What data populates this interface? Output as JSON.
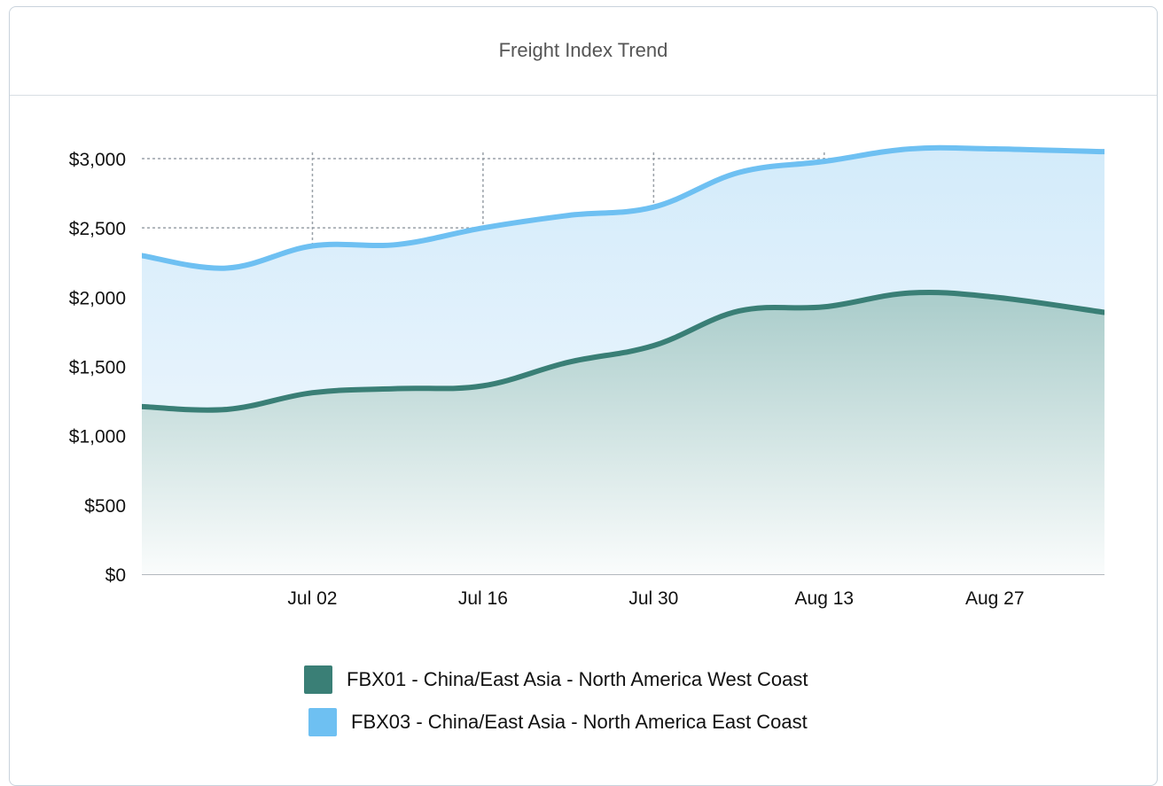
{
  "card": {
    "title": "Freight Index Trend"
  },
  "chart_data": {
    "type": "area",
    "title": "Freight Index Trend",
    "xlabel": "",
    "ylabel": "",
    "x_start": "2025-06-18",
    "x_end": "2025-09-05",
    "x_ticks": [
      "Jul 02",
      "Jul 16",
      "Jul 30",
      "Aug 13",
      "Aug 27"
    ],
    "x_tick_dates": [
      "2025-07-02",
      "2025-07-16",
      "2025-07-30",
      "2025-08-13",
      "2025-08-27"
    ],
    "y_ticks": [
      "$0",
      "$500",
      "$1,000",
      "$1,500",
      "$2,000",
      "$2,500",
      "$3,000"
    ],
    "y_tick_values": [
      0,
      500,
      1000,
      1500,
      2000,
      2500,
      3000
    ],
    "ylim": [
      0,
      3000
    ],
    "grid": true,
    "legend_position": "bottom",
    "x": [
      "2025-06-18",
      "2025-06-25",
      "2025-07-02",
      "2025-07-09",
      "2025-07-16",
      "2025-07-23",
      "2025-07-30",
      "2025-08-06",
      "2025-08-13",
      "2025-08-20",
      "2025-08-27",
      "2025-09-05"
    ],
    "series": [
      {
        "name": "FBX01 - China/East Asia - North America West Coast",
        "color": "#3a7f76",
        "values": [
          1210,
          1190,
          1310,
          1340,
          1360,
          1530,
          1650,
          1900,
          1930,
          2030,
          2000,
          1890
        ]
      },
      {
        "name": "FBX03 - China/East Asia - North America East Coast",
        "color": "#6ec0f2",
        "values": [
          2300,
          2210,
          2370,
          2380,
          2500,
          2590,
          2650,
          2900,
          2980,
          3070,
          3070,
          3050
        ]
      }
    ]
  }
}
